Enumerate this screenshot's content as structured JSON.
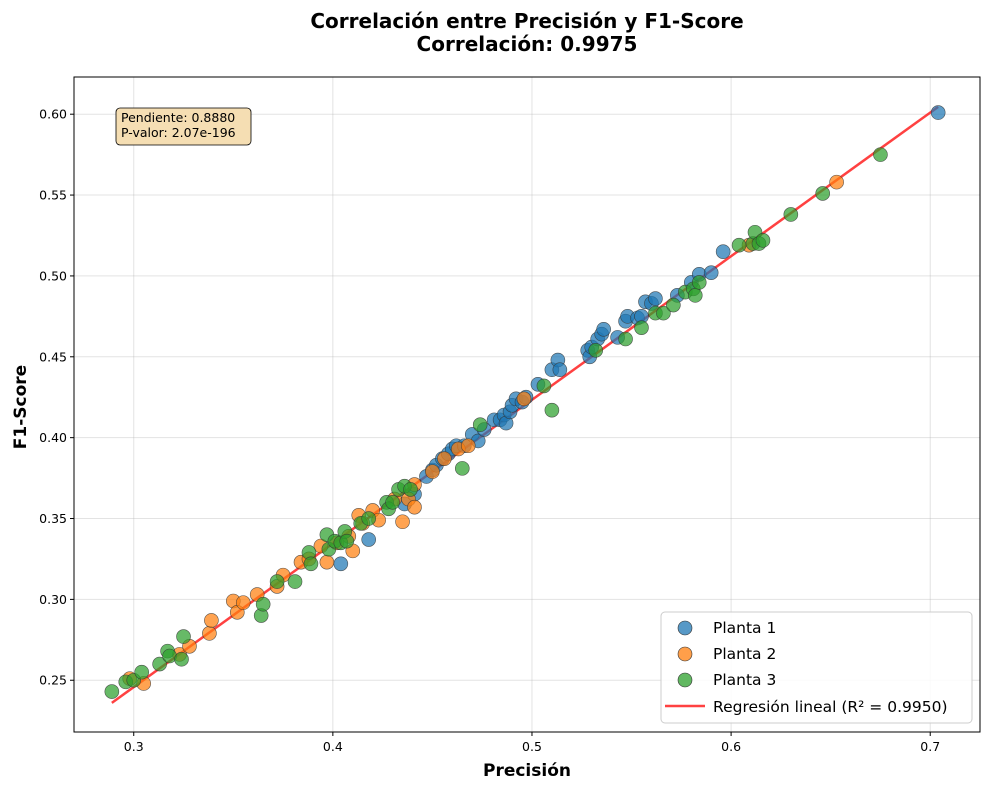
{
  "chart_data": {
    "type": "scatter",
    "title": "Correlación entre Precisión y F1-Score",
    "subtitle": "Correlación: 0.9975",
    "xlabel": "Precisión",
    "ylabel": "F1-Score",
    "xlim": [
      0.27,
      0.725
    ],
    "ylim": [
      0.218,
      0.623
    ],
    "xticks": [
      "0.3",
      "0.4",
      "0.5",
      "0.6",
      "0.7"
    ],
    "yticks": [
      "0.25",
      "0.30",
      "0.35",
      "0.40",
      "0.45",
      "0.50",
      "0.55",
      "0.60"
    ],
    "grid": true,
    "legend_position": "bottom-right",
    "annotation": [
      "Pendiente: 0.8880",
      "P-valor: 2.07e-196"
    ],
    "series": [
      {
        "name": "Planta 1",
        "color": "#1f77b4",
        "points": [
          [
            0.404,
            0.322
          ],
          [
            0.418,
            0.337
          ],
          [
            0.436,
            0.359
          ],
          [
            0.441,
            0.365
          ],
          [
            0.447,
            0.376
          ],
          [
            0.45,
            0.38
          ],
          [
            0.452,
            0.383
          ],
          [
            0.455,
            0.387
          ],
          [
            0.458,
            0.39
          ],
          [
            0.46,
            0.393
          ],
          [
            0.462,
            0.395
          ],
          [
            0.466,
            0.395
          ],
          [
            0.47,
            0.402
          ],
          [
            0.473,
            0.398
          ],
          [
            0.476,
            0.405
          ],
          [
            0.481,
            0.411
          ],
          [
            0.484,
            0.411
          ],
          [
            0.486,
            0.414
          ],
          [
            0.487,
            0.409
          ],
          [
            0.489,
            0.416
          ],
          [
            0.49,
            0.42
          ],
          [
            0.492,
            0.424
          ],
          [
            0.495,
            0.422
          ],
          [
            0.497,
            0.425
          ],
          [
            0.503,
            0.433
          ],
          [
            0.51,
            0.442
          ],
          [
            0.513,
            0.448
          ],
          [
            0.514,
            0.442
          ],
          [
            0.528,
            0.454
          ],
          [
            0.529,
            0.45
          ],
          [
            0.53,
            0.456
          ],
          [
            0.533,
            0.461
          ],
          [
            0.535,
            0.464
          ],
          [
            0.536,
            0.467
          ],
          [
            0.543,
            0.462
          ],
          [
            0.547,
            0.472
          ],
          [
            0.548,
            0.475
          ],
          [
            0.553,
            0.474
          ],
          [
            0.555,
            0.475
          ],
          [
            0.557,
            0.484
          ],
          [
            0.56,
            0.483
          ],
          [
            0.562,
            0.486
          ],
          [
            0.573,
            0.488
          ],
          [
            0.58,
            0.496
          ],
          [
            0.584,
            0.501
          ],
          [
            0.59,
            0.502
          ],
          [
            0.596,
            0.515
          ],
          [
            0.704,
            0.601
          ]
        ]
      },
      {
        "name": "Planta 2",
        "color": "#ff7f0e",
        "points": [
          [
            0.298,
            0.251
          ],
          [
            0.305,
            0.248
          ],
          [
            0.323,
            0.266
          ],
          [
            0.328,
            0.271
          ],
          [
            0.338,
            0.279
          ],
          [
            0.339,
            0.287
          ],
          [
            0.35,
            0.299
          ],
          [
            0.352,
            0.292
          ],
          [
            0.355,
            0.298
          ],
          [
            0.362,
            0.303
          ],
          [
            0.372,
            0.308
          ],
          [
            0.375,
            0.315
          ],
          [
            0.384,
            0.323
          ],
          [
            0.388,
            0.325
          ],
          [
            0.394,
            0.333
          ],
          [
            0.397,
            0.323
          ],
          [
            0.402,
            0.335
          ],
          [
            0.408,
            0.339
          ],
          [
            0.41,
            0.33
          ],
          [
            0.413,
            0.352
          ],
          [
            0.415,
            0.347
          ],
          [
            0.42,
            0.355
          ],
          [
            0.423,
            0.349
          ],
          [
            0.431,
            0.362
          ],
          [
            0.435,
            0.348
          ],
          [
            0.438,
            0.362
          ],
          [
            0.441,
            0.357
          ],
          [
            0.441,
            0.371
          ],
          [
            0.45,
            0.379
          ],
          [
            0.456,
            0.387
          ],
          [
            0.463,
            0.393
          ],
          [
            0.468,
            0.395
          ],
          [
            0.496,
            0.424
          ],
          [
            0.609,
            0.519
          ],
          [
            0.653,
            0.558
          ]
        ]
      },
      {
        "name": "Planta 3",
        "color": "#2ca02c",
        "points": [
          [
            0.289,
            0.243
          ],
          [
            0.296,
            0.249
          ],
          [
            0.3,
            0.25
          ],
          [
            0.304,
            0.255
          ],
          [
            0.313,
            0.26
          ],
          [
            0.317,
            0.268
          ],
          [
            0.318,
            0.265
          ],
          [
            0.324,
            0.263
          ],
          [
            0.325,
            0.277
          ],
          [
            0.364,
            0.29
          ],
          [
            0.365,
            0.297
          ],
          [
            0.372,
            0.311
          ],
          [
            0.381,
            0.311
          ],
          [
            0.388,
            0.329
          ],
          [
            0.389,
            0.322
          ],
          [
            0.397,
            0.34
          ],
          [
            0.398,
            0.331
          ],
          [
            0.401,
            0.336
          ],
          [
            0.404,
            0.335
          ],
          [
            0.406,
            0.342
          ],
          [
            0.407,
            0.336
          ],
          [
            0.414,
            0.347
          ],
          [
            0.418,
            0.35
          ],
          [
            0.427,
            0.36
          ],
          [
            0.428,
            0.356
          ],
          [
            0.43,
            0.36
          ],
          [
            0.433,
            0.368
          ],
          [
            0.436,
            0.37
          ],
          [
            0.439,
            0.368
          ],
          [
            0.465,
            0.381
          ],
          [
            0.474,
            0.408
          ],
          [
            0.506,
            0.432
          ],
          [
            0.51,
            0.417
          ],
          [
            0.532,
            0.454
          ],
          [
            0.547,
            0.461
          ],
          [
            0.555,
            0.468
          ],
          [
            0.562,
            0.477
          ],
          [
            0.566,
            0.477
          ],
          [
            0.571,
            0.482
          ],
          [
            0.577,
            0.49
          ],
          [
            0.581,
            0.492
          ],
          [
            0.582,
            0.488
          ],
          [
            0.584,
            0.496
          ],
          [
            0.604,
            0.519
          ],
          [
            0.611,
            0.52
          ],
          [
            0.612,
            0.527
          ],
          [
            0.614,
            0.52
          ],
          [
            0.616,
            0.522
          ],
          [
            0.63,
            0.538
          ],
          [
            0.646,
            0.551
          ],
          [
            0.675,
            0.575
          ]
        ]
      }
    ],
    "regression": {
      "name": "Regresión lineal (R² = 0.9950)",
      "color": "#ff2020",
      "slope": 0.888,
      "intercept": -0.0206,
      "x_range": [
        0.289,
        0.704
      ]
    }
  }
}
